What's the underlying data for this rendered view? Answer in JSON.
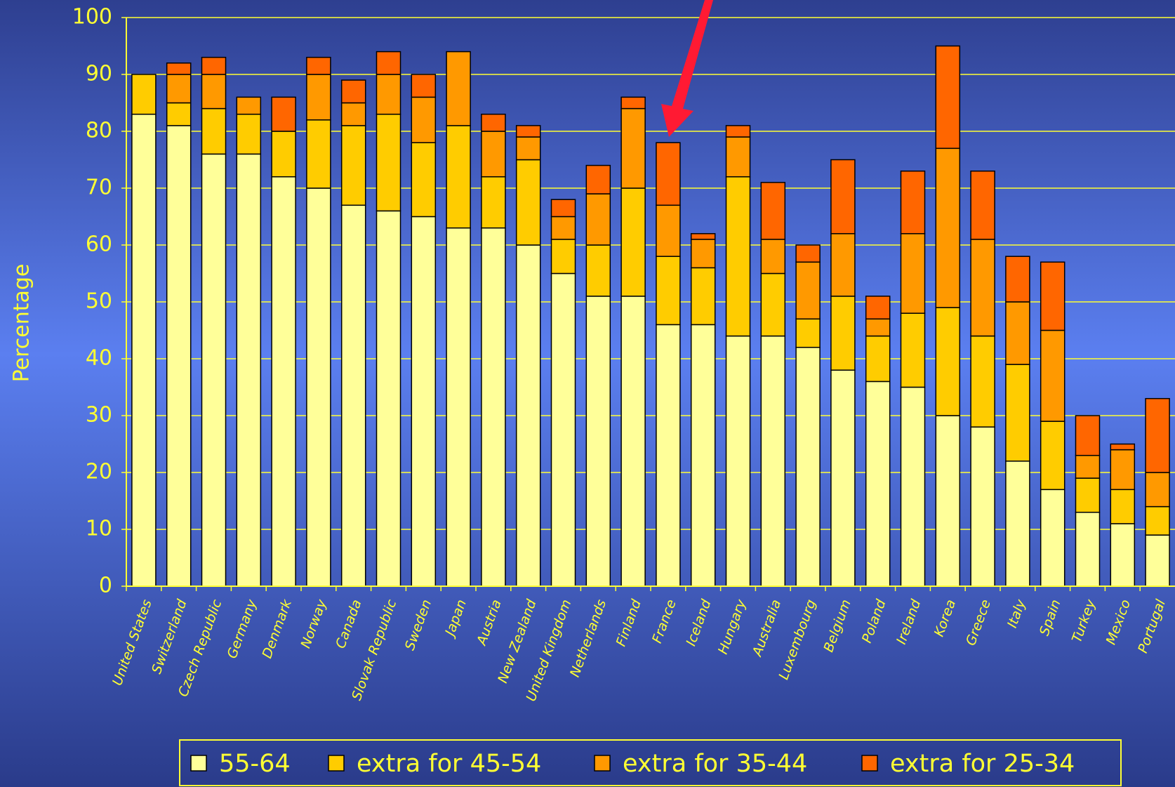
{
  "chart_data": {
    "type": "stacked_bar",
    "y_label": "Percentage",
    "categories": [
      "United States",
      "Switzerland",
      "Czech Republic",
      "Germany",
      "Denmark",
      "Norway",
      "Canada",
      "Slovak Republic",
      "Sweden",
      "Japan",
      "Austria",
      "New Zealand",
      "United Kingdom",
      "Netherlands",
      "Finland",
      "France",
      "Iceland",
      "Hungary",
      "Australia",
      "Luxembourg",
      "Belgium",
      "Poland",
      "Ireland",
      "Korea",
      "Greece",
      "Italy",
      "Spain",
      "Turkey",
      "Mexico",
      "Portugal"
    ],
    "series": [
      {
        "name": "55-64",
        "color": "#ffff99",
        "values": [
          83,
          81,
          76,
          76,
          72,
          70,
          67,
          66,
          65,
          63,
          63,
          60,
          55,
          51,
          51,
          46,
          46,
          44,
          44,
          42,
          38,
          36,
          35,
          30,
          28,
          22,
          17,
          13,
          11,
          9
        ]
      },
      {
        "name": "extra for 45-54",
        "color": "#ffcc00",
        "values": [
          7,
          4,
          8,
          7,
          8,
          12,
          14,
          17,
          13,
          18,
          9,
          15,
          6,
          9,
          19,
          12,
          10,
          28,
          11,
          5,
          13,
          8,
          13,
          19,
          16,
          17,
          12,
          6,
          6,
          5
        ]
      },
      {
        "name": "extra for 35-44",
        "color": "#ff9900",
        "values": [
          0,
          5,
          6,
          3,
          0,
          8,
          4,
          7,
          8,
          13,
          8,
          4,
          4,
          9,
          14,
          9,
          5,
          7,
          6,
          10,
          11,
          3,
          14,
          28,
          17,
          11,
          16,
          4,
          7,
          6
        ]
      },
      {
        "name": "extra for 25-34",
        "color": "#ff6600",
        "values": [
          0,
          2,
          3,
          0,
          6,
          3,
          4,
          4,
          4,
          0,
          3,
          2,
          3,
          5,
          2,
          11,
          1,
          2,
          10,
          3,
          13,
          4,
          11,
          18,
          12,
          8,
          12,
          7,
          1,
          13
        ]
      }
    ],
    "ylim": [
      0,
      100
    ],
    "yticks": [
      0,
      10,
      20,
      30,
      40,
      50,
      60,
      70,
      80,
      90,
      100
    ],
    "grid": true
  }
}
